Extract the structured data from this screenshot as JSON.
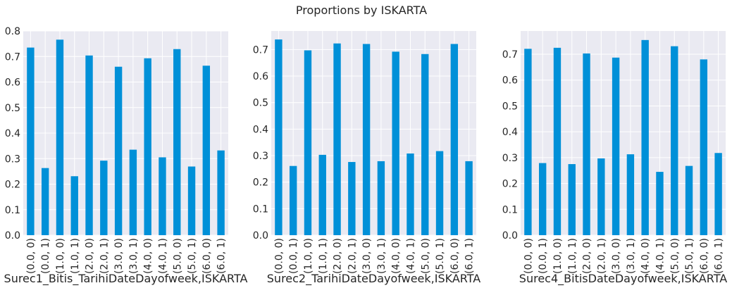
{
  "figure": {
    "title": "Proportions by ISKARTA"
  },
  "chart_data": [
    {
      "type": "bar",
      "title": "",
      "xlabel": "Surec1_Bitis_TarihiDateDayofweek,ISKARTA",
      "ylabel": "",
      "ylim": [
        0,
        0.8
      ],
      "yticks": [
        "0.0",
        "0.1",
        "0.2",
        "0.3",
        "0.4",
        "0.5",
        "0.6",
        "0.7",
        "0.8"
      ],
      "grid": true,
      "color": "#0090d8",
      "categories": [
        "(0.0, 0)",
        "(0.0, 1)",
        "(1.0, 0)",
        "(1.0, 1)",
        "(2.0, 0)",
        "(2.0, 1)",
        "(3.0, 0)",
        "(3.0, 1)",
        "(4.0, 0)",
        "(4.0, 1)",
        "(5.0, 0)",
        "(5.0, 1)",
        "(6.0, 0)",
        "(6.0, 1)"
      ],
      "values": [
        0.735,
        0.263,
        0.766,
        0.231,
        0.704,
        0.292,
        0.66,
        0.335,
        0.693,
        0.305,
        0.729,
        0.269,
        0.664,
        0.332
      ]
    },
    {
      "type": "bar",
      "title": "",
      "xlabel": "Surec2_TarihiDateDayofweek,ISKARTA",
      "ylabel": "",
      "ylim": [
        0,
        0.77
      ],
      "yticks": [
        "0.0",
        "0.1",
        "0.2",
        "0.3",
        "0.4",
        "0.5",
        "0.6",
        "0.7"
      ],
      "grid": true,
      "color": "#0090d8",
      "categories": [
        "(0.0, 0)",
        "(0.0, 1)",
        "(1.0, 0)",
        "(1.0, 1)",
        "(2.0, 0)",
        "(2.0, 1)",
        "(3.0, 0)",
        "(3.0, 1)",
        "(4.0, 0)",
        "(4.0, 1)",
        "(5.0, 0)",
        "(5.0, 1)",
        "(6.0, 0)",
        "(6.0, 1)"
      ],
      "values": [
        0.738,
        0.261,
        0.697,
        0.303,
        0.723,
        0.276,
        0.721,
        0.279,
        0.692,
        0.308,
        0.683,
        0.317,
        0.721,
        0.279
      ]
    },
    {
      "type": "bar",
      "title": "",
      "xlabel": "Surec4_BitisDateDayofweek,ISKARTA",
      "ylabel": "",
      "ylim": [
        0,
        0.79
      ],
      "yticks": [
        "0.0",
        "0.1",
        "0.2",
        "0.3",
        "0.4",
        "0.5",
        "0.6",
        "0.7"
      ],
      "grid": true,
      "color": "#0090d8",
      "categories": [
        "(0.0, 0)",
        "(0.0, 1)",
        "(1.0, 0)",
        "(1.0, 1)",
        "(2.0, 0)",
        "(2.0, 1)",
        "(3.0, 0)",
        "(3.0, 1)",
        "(4.0, 0)",
        "(4.0, 1)",
        "(5.0, 0)",
        "(5.0, 1)",
        "(6.0, 0)",
        "(6.0, 1)"
      ],
      "values": [
        0.721,
        0.279,
        0.725,
        0.275,
        0.703,
        0.297,
        0.687,
        0.313,
        0.755,
        0.245,
        0.731,
        0.268,
        0.68,
        0.318
      ]
    }
  ]
}
